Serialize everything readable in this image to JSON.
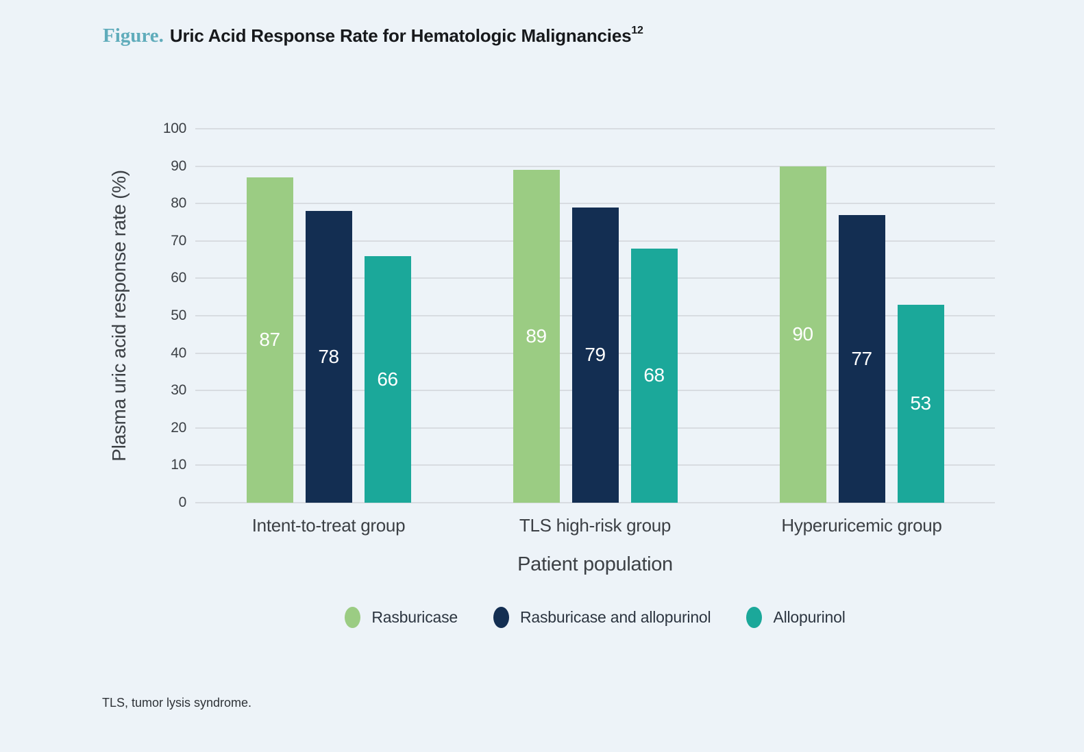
{
  "figure": {
    "label": "Figure.",
    "title": "Uric Acid Response Rate for Hematologic Malignancies",
    "reference_superscript": "12"
  },
  "chart_data": {
    "type": "bar",
    "title": "Uric Acid Response Rate for Hematologic Malignancies",
    "categories": [
      "Intent-to-treat group",
      "TLS high-risk group",
      "Hyperuricemic group"
    ],
    "series": [
      {
        "name": "Rasburicase",
        "color": "#9bcc83",
        "values": [
          87,
          89,
          90
        ]
      },
      {
        "name": "Rasburicase and allopurinol",
        "color": "#132e52",
        "values": [
          78,
          79,
          77
        ]
      },
      {
        "name": "Allopurinol",
        "color": "#1ba89a",
        "values": [
          66,
          68,
          53
        ]
      }
    ],
    "xlabel": "Patient population",
    "ylabel": "Plasma uric acid response rate (%)",
    "ylim": [
      0,
      100
    ],
    "yticks": [
      0,
      10,
      20,
      30,
      40,
      50,
      60,
      70,
      80,
      90,
      100
    ],
    "grid": true,
    "legend_position": "bottom",
    "bar_value_labels": true
  },
  "footnote": "TLS, tumor lysis syndrome.",
  "colors": {
    "background": "#edf3f8",
    "gridline": "#d8dce1",
    "figure_label_accent": "#60acbb",
    "axis_text": "#3c4045",
    "bar_value_text": "#ffffff"
  }
}
